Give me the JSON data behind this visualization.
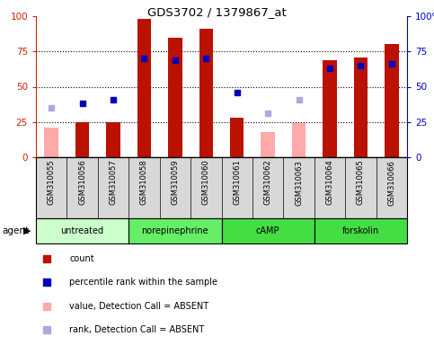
{
  "title": "GDS3702 / 1379867_at",
  "samples": [
    "GSM310055",
    "GSM310056",
    "GSM310057",
    "GSM310058",
    "GSM310059",
    "GSM310060",
    "GSM310061",
    "GSM310062",
    "GSM310063",
    "GSM310064",
    "GSM310065",
    "GSM310066"
  ],
  "count_values": [
    21,
    25,
    25,
    98,
    85,
    91,
    28,
    18,
    24,
    69,
    71,
    80
  ],
  "count_absent": [
    true,
    false,
    false,
    false,
    false,
    false,
    false,
    true,
    true,
    false,
    false,
    false
  ],
  "rank_values": [
    35,
    38,
    41,
    70,
    69,
    70,
    46,
    31,
    41,
    63,
    65,
    66
  ],
  "rank_absent": [
    true,
    false,
    false,
    false,
    false,
    false,
    false,
    true,
    true,
    false,
    false,
    false
  ],
  "group_defs": [
    {
      "label": "untreated",
      "start": 0,
      "end": 3,
      "color": "#ccffcc"
    },
    {
      "label": "norepinephrine",
      "start": 3,
      "end": 6,
      "color": "#66ee66"
    },
    {
      "label": "cAMP",
      "start": 6,
      "end": 9,
      "color": "#44dd44"
    },
    {
      "label": "forskolin",
      "start": 9,
      "end": 12,
      "color": "#44dd44"
    }
  ],
  "left_axis_color": "#cc2200",
  "right_axis_color": "#0000cc",
  "bar_color_present": "#bb1100",
  "bar_color_absent": "#ffaaaa",
  "rank_color_present": "#0000bb",
  "rank_color_absent": "#aaaadd",
  "dotted_lines": [
    25,
    50,
    75
  ],
  "legend_items": [
    {
      "label": "count",
      "color": "#bb1100"
    },
    {
      "label": "percentile rank within the sample",
      "color": "#0000bb"
    },
    {
      "label": "value, Detection Call = ABSENT",
      "color": "#ffaaaa"
    },
    {
      "label": "rank, Detection Call = ABSENT",
      "color": "#aaaadd"
    }
  ],
  "agent_label": "agent",
  "sample_bg_color": "#d8d8d8",
  "bar_width": 0.45
}
